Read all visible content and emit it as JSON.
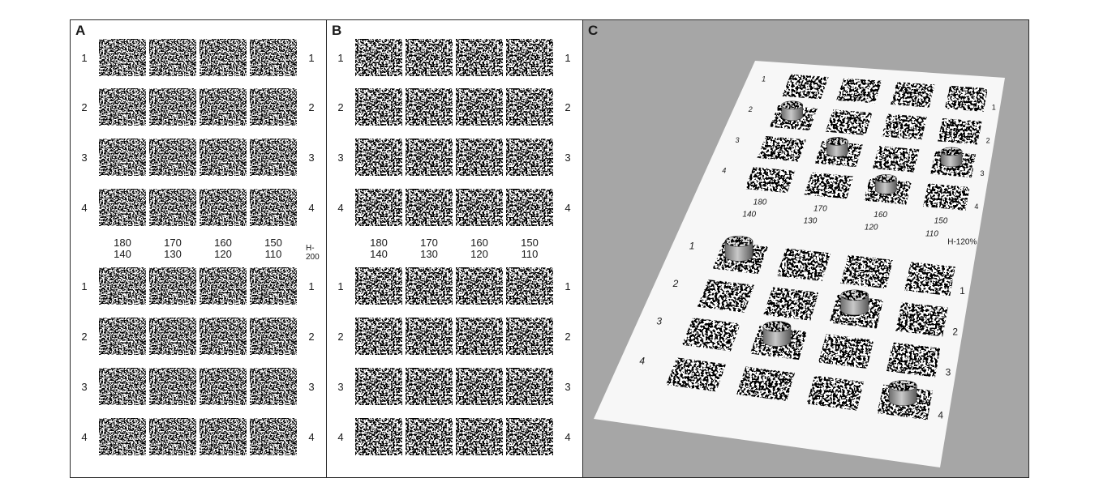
{
  "panels": [
    {
      "id": "A",
      "label": "A",
      "setting": "H-200"
    },
    {
      "id": "B",
      "label": "B",
      "setting": ""
    },
    {
      "id": "C",
      "label": "C",
      "setting": "H-120%"
    }
  ],
  "row_labels": [
    "1",
    "2",
    "3",
    "4"
  ],
  "column_labels": [
    {
      "top": "180",
      "bottom": "140"
    },
    {
      "top": "170",
      "bottom": "130"
    },
    {
      "top": "160",
      "bottom": "120"
    },
    {
      "top": "150",
      "bottom": "110"
    }
  ],
  "colors": {
    "panel_c_background": "#a6a6a6",
    "floor": "#f7f7f7",
    "patch_dark": "#111111",
    "patch_light": "#ffffff"
  },
  "objects_on_patches": [
    {
      "group": "upper",
      "row": 2,
      "column": 1
    },
    {
      "group": "upper",
      "row": 3,
      "column": 2
    },
    {
      "group": "upper",
      "row": 3,
      "column": 4
    },
    {
      "group": "upper",
      "row": 4,
      "column": 3
    },
    {
      "group": "lower",
      "row": 1,
      "column": 1
    },
    {
      "group": "lower",
      "row": 2,
      "column": 3
    },
    {
      "group": "lower",
      "row": 3,
      "column": 2
    },
    {
      "group": "lower",
      "row": 4,
      "column": 4
    }
  ]
}
